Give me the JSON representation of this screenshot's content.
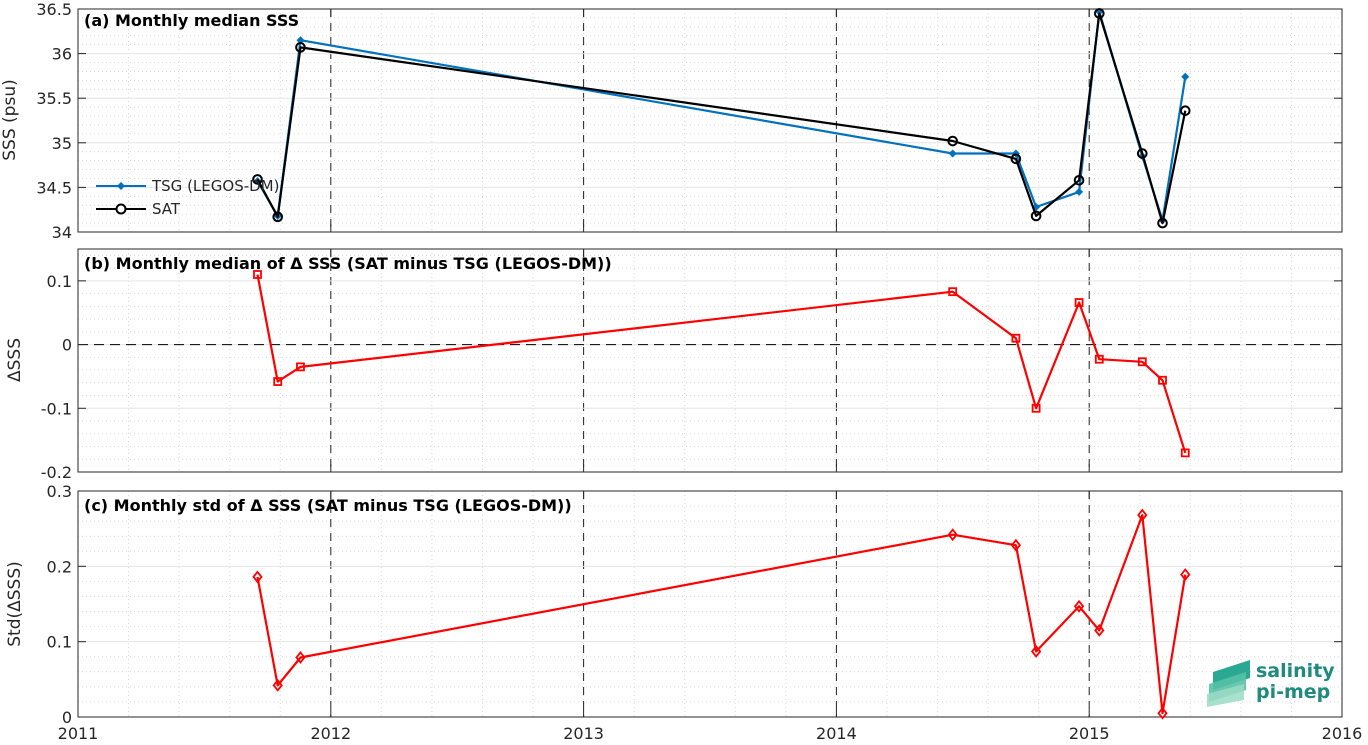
{
  "chart_data": [
    {
      "type": "line",
      "title": "(a) Monthly median SSS",
      "ylabel": "SSS (psu)",
      "xlim": [
        2011,
        2016
      ],
      "ylim": [
        34,
        36.5
      ],
      "xticks": [
        "2011",
        "2012",
        "2013",
        "2014",
        "2015",
        "2016"
      ],
      "yticks": [
        "34",
        "34.5",
        "35",
        "35.5",
        "36",
        "36.5"
      ],
      "legend_position": "left",
      "series": [
        {
          "name": "TSG (LEGOS-DM)",
          "color": "#0072BD",
          "marker": "filled-diamond",
          "x": [
            2011.71,
            2011.79,
            2011.88,
            2014.46,
            2014.71,
            2014.79,
            2014.96,
            2015.04,
            2015.21,
            2015.29,
            2015.38
          ],
          "y": [
            34.57,
            34.18,
            36.15,
            34.88,
            34.88,
            34.28,
            34.45,
            36.47,
            34.85,
            34.13,
            35.74
          ]
        },
        {
          "name": "SAT",
          "color": "#000000",
          "marker": "open-circle",
          "x": [
            2011.71,
            2011.79,
            2011.88,
            2014.46,
            2014.71,
            2014.79,
            2014.96,
            2015.04,
            2015.21,
            2015.29,
            2015.38
          ],
          "y": [
            34.59,
            34.17,
            36.07,
            35.02,
            34.82,
            34.18,
            34.58,
            36.45,
            34.88,
            34.1,
            35.36
          ]
        }
      ],
      "grid": true
    },
    {
      "type": "line",
      "title": "(b) Monthly median of Δ SSS (SAT minus TSG (LEGOS-DM))",
      "ylabel": "ΔSSS",
      "xlim": [
        2011,
        2016
      ],
      "ylim": [
        -0.2,
        0.15
      ],
      "xticks": [
        "2011",
        "2012",
        "2013",
        "2014",
        "2015",
        "2016"
      ],
      "yticks": [
        "-0.2",
        "-0.1",
        "0",
        "0.1"
      ],
      "series": [
        {
          "color": "#FF0000",
          "marker": "open-square",
          "x": [
            2011.71,
            2011.79,
            2011.88,
            2014.46,
            2014.71,
            2014.79,
            2014.96,
            2015.04,
            2015.21,
            2015.29,
            2015.38
          ],
          "y": [
            0.11,
            -0.058,
            -0.035,
            0.083,
            0.01,
            -0.1,
            0.066,
            -0.023,
            -0.027,
            -0.056,
            -0.17
          ]
        }
      ],
      "zero_line": true,
      "grid": true
    },
    {
      "type": "line",
      "title": "(c) Monthly std of Δ SSS (SAT minus TSG (LEGOS-DM))",
      "ylabel": "Std(ΔSSS)",
      "xlim": [
        2011,
        2016
      ],
      "ylim": [
        0,
        0.3
      ],
      "xticks": [
        "2011",
        "2012",
        "2013",
        "2014",
        "2015",
        "2016"
      ],
      "yticks": [
        "0",
        "0.1",
        "0.2",
        "0.3"
      ],
      "series": [
        {
          "color": "#FF0000",
          "marker": "open-diamond",
          "x": [
            2011.71,
            2011.79,
            2011.88,
            2014.46,
            2014.71,
            2014.79,
            2014.96,
            2015.04,
            2015.21,
            2015.29,
            2015.38
          ],
          "y": [
            0.186,
            0.042,
            0.079,
            0.242,
            0.228,
            0.087,
            0.147,
            0.115,
            0.268,
            0.005,
            0.189
          ]
        }
      ],
      "grid": true
    }
  ],
  "logo": {
    "line1": "salinity",
    "line2": "pi-mep",
    "color": "#1f8a7d"
  }
}
